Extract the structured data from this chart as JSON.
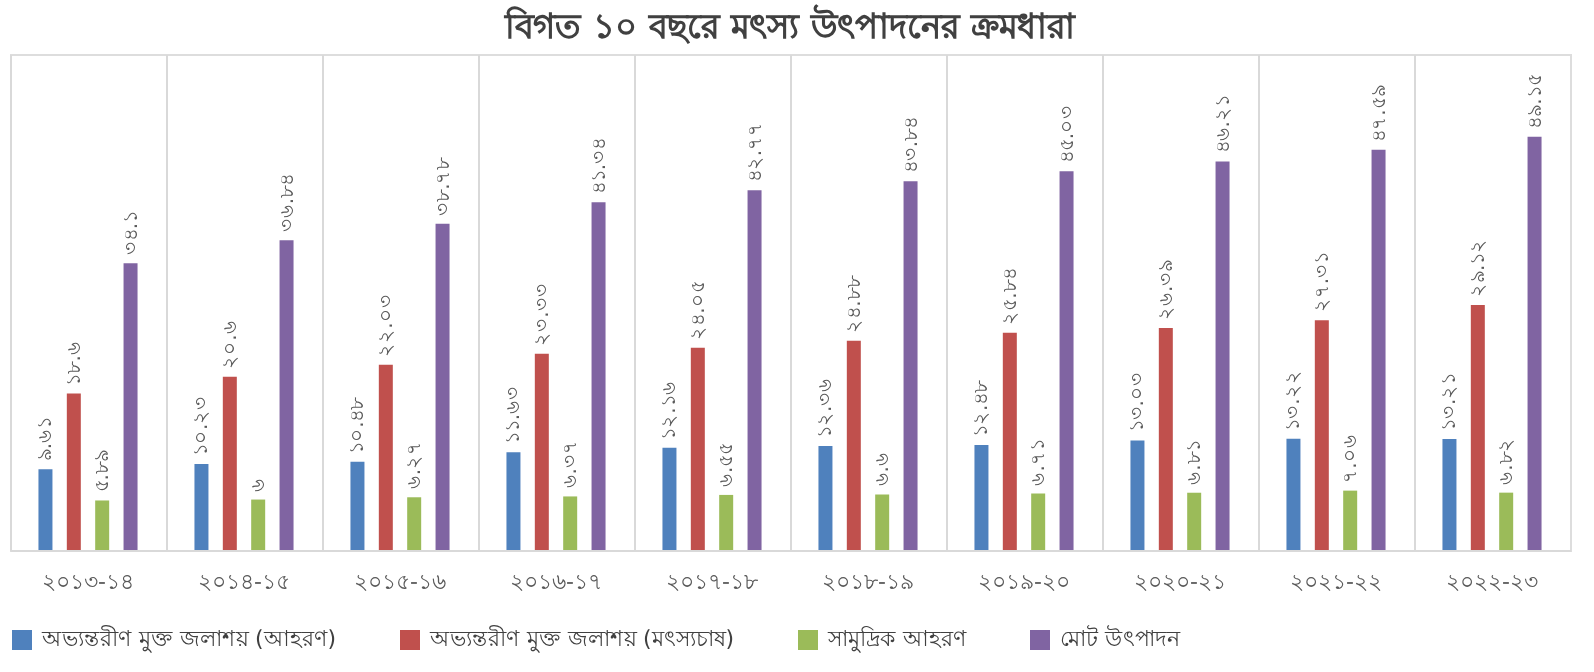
{
  "chart_data": {
    "type": "bar",
    "title": "বিগত ১০ বছরে মৎস্য উৎপাদনের ক্রমধারা",
    "categories": [
      "২০১৩-১৪",
      "২০১৪-১৫",
      "২০১৫-১৬",
      "২০১৬-১৭",
      "২০১৭-১৮",
      "২০১৮-১৯",
      "২০১৯-২০",
      "২০২০-২১",
      "২০২১-২২",
      "২০২২-২৩"
    ],
    "series": [
      {
        "name": "অভ্যন্তরীণ মুক্ত জলাশয় (আহরণ)",
        "color": "#4f81bd",
        "values": [
          9.61,
          10.23,
          10.48,
          11.63,
          12.16,
          12.36,
          12.48,
          13.03,
          13.22,
          13.21
        ],
        "value_labels": [
          "৯.৬১",
          "১০.২৩",
          "১০.৪৮",
          "১১.৬৩",
          "১২.১৬",
          "১২.৩৬",
          "১২.৪৮",
          "১৩.০৩",
          "১৩.২২",
          "১৩.২১"
        ]
      },
      {
        "name": "অভ্যন্তরীণ মুক্ত জলাশয় (মৎস্যচাষ)",
        "color": "#c0504d",
        "values": [
          18.6,
          20.6,
          22.03,
          23.33,
          24.05,
          24.88,
          25.84,
          26.39,
          27.31,
          29.12
        ],
        "value_labels": [
          "১৮.৬",
          "২০.৬",
          "২২.০৩",
          "২৩.৩৩",
          "২৪.০৫",
          "২৪.৮৮",
          "২৫.৮৪",
          "২৬.৩৯",
          "২৭.৩১",
          "২৯.১২"
        ]
      },
      {
        "name": "সামুদ্রিক আহরণ",
        "color": "#9bbb59",
        "values": [
          5.89,
          6,
          6.27,
          6.37,
          6.55,
          6.6,
          6.71,
          6.81,
          7.06,
          6.82
        ],
        "value_labels": [
          "৫.৮৯",
          "৬",
          "৬.২৭",
          "৬.৩৭",
          "৬.৫৫",
          "৬.৬",
          "৬.৭১",
          "৬.৮১",
          "৭.০৬",
          "৬.৮২"
        ]
      },
      {
        "name": "মোট উৎপাদন",
        "color": "#8064a2",
        "values": [
          34.1,
          36.84,
          38.78,
          41.34,
          42.77,
          43.84,
          45.03,
          46.21,
          47.59,
          49.15
        ],
        "value_labels": [
          "৩৪.১",
          "৩৬.৮৪",
          "৩৮.৭৮",
          "৪১.৩৪",
          "৪২.৭৭",
          "৪৩.৮৪",
          "৪৫.০৩",
          "৪৬.২১",
          "৪৭.৫৯",
          "৪৯.১৫"
        ]
      }
    ],
    "grid": "x",
    "legend": "bottom"
  }
}
